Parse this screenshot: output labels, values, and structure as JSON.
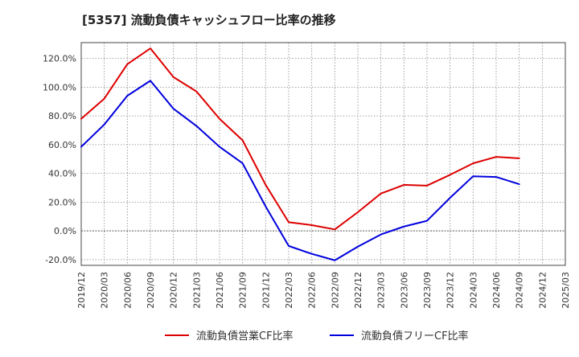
{
  "chart_data": {
    "type": "line",
    "title": "[5357]  流動負債キャッシュフロー比率の推移",
    "xlabel": "",
    "ylabel": "",
    "ylim": [
      -24,
      131
    ],
    "yticks": [
      -20,
      0,
      20,
      40,
      60,
      80,
      100,
      120
    ],
    "ytick_labels": [
      "-20.0%",
      "0.0%",
      "20.0%",
      "40.0%",
      "60.0%",
      "80.0%",
      "100.0%",
      "120.0%"
    ],
    "x_tick_labels": [
      "2019/12",
      "2020/03",
      "2020/06",
      "2020/09",
      "2020/12",
      "2021/03",
      "2021/06",
      "2021/09",
      "2021/12",
      "2022/03",
      "2022/06",
      "2022/09",
      "2022/12",
      "2023/03",
      "2023/06",
      "2023/09",
      "2023/12",
      "2024/03",
      "2024/06",
      "2024/09",
      "2024/12",
      "2025/03"
    ],
    "grid": true,
    "legend_position": "bottom",
    "series": [
      {
        "name": "流動負債営業CF比率",
        "color": "#dd0000",
        "x": [
          "2019/12",
          "2020/03",
          "2020/06",
          "2020/09",
          "2020/12",
          "2021/03",
          "2021/06",
          "2021/09",
          "2021/12",
          "2022/03",
          "2022/06",
          "2022/09",
          "2022/12",
          "2023/03",
          "2023/06",
          "2023/09",
          "2023/12",
          "2024/03",
          "2024/06",
          "2024/09"
        ],
        "values": [
          78,
          92,
          116,
          127,
          107,
          97,
          78,
          63,
          32,
          6,
          4,
          1,
          13,
          26,
          32,
          31.5,
          39,
          47,
          51.5,
          50.5
        ]
      },
      {
        "name": "流動負債フリーCF比率",
        "color": "#0000dd",
        "x": [
          "2019/12",
          "2020/03",
          "2020/06",
          "2020/09",
          "2020/12",
          "2021/03",
          "2021/06",
          "2021/09",
          "2021/12",
          "2022/03",
          "2022/06",
          "2022/09",
          "2022/12",
          "2023/03",
          "2023/06",
          "2023/09",
          "2023/12",
          "2024/03",
          "2024/06",
          "2024/09"
        ],
        "values": [
          58.5,
          74,
          94,
          104.5,
          85,
          73,
          58.5,
          47,
          17,
          -10.5,
          -16,
          -20.5,
          -11,
          -2.5,
          3,
          7,
          23,
          38,
          37.5,
          32.5
        ]
      }
    ]
  }
}
